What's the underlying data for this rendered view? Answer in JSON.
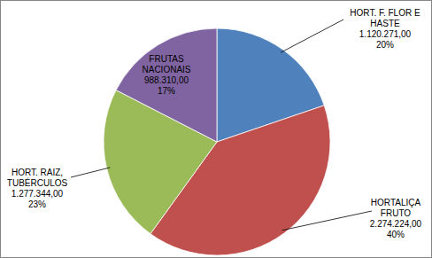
{
  "chart_data": {
    "type": "pie",
    "categories": [
      "HORT. F. FLOR E HASTE",
      "HORTALIÇA FRUTO",
      "HORT. RAIZ, TUBÉRCULOS",
      "FRUTAS NACIONAIS"
    ],
    "values": [
      1120271,
      2274224,
      1277344,
      988310
    ],
    "value_labels": [
      "1.120.271,00",
      "2.274.224,00",
      "1.277.344,00",
      "988.310,00"
    ],
    "percents": [
      20,
      40,
      23,
      17
    ],
    "percent_labels": [
      "20%",
      "40%",
      "23%",
      "17%"
    ],
    "colors": [
      "#4f81bd",
      "#c0504d",
      "#9bbb59",
      "#8064a2"
    ],
    "data_labels": true
  }
}
